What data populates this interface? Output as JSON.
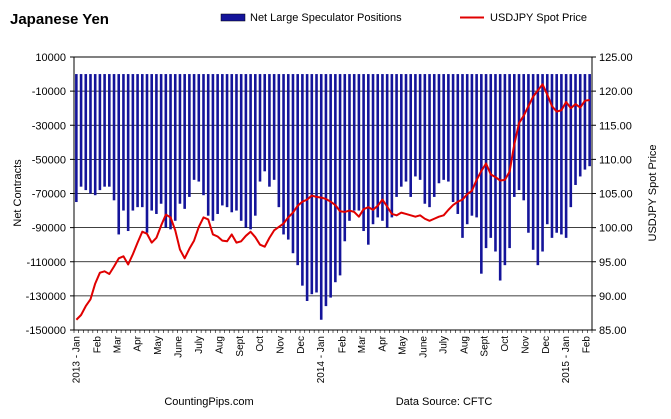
{
  "chart_data": {
    "type": "bar+line",
    "title": "Japanese Yen",
    "legend": {
      "placement": "top",
      "items": [
        {
          "label": "Net Large Speculator Positions",
          "kind": "bar",
          "color": "#14149a"
        },
        {
          "label": "USDJPY Spot Price",
          "kind": "line",
          "color": "#e00000"
        }
      ]
    },
    "y_left": {
      "label": "Net Contracts",
      "ylim": [
        -150000,
        10000
      ],
      "ticks": [
        10000,
        -10000,
        -30000,
        -50000,
        -70000,
        -90000,
        -110000,
        -130000,
        -150000
      ],
      "tick_labels": [
        "10000",
        "-10000",
        "-30000",
        "-50000",
        "-70000",
        "-90000",
        "-110000",
        "-130000",
        "-150000"
      ]
    },
    "y_right": {
      "label": "USDJPY Spot Price",
      "ylim": [
        85,
        125
      ],
      "ticks": [
        125,
        120,
        115,
        110,
        105,
        100,
        95,
        90,
        85
      ],
      "tick_labels": [
        "125.00",
        "120.00",
        "115.00",
        "110.00",
        "105.00",
        "100.00",
        "95.00",
        "90.00",
        "85.00"
      ]
    },
    "x_axis": {
      "n_weeks": 110,
      "month_labels": [
        {
          "label": "2013 - Jan",
          "week": 0
        },
        {
          "label": "Feb",
          "week": 4.5
        },
        {
          "label": "Mar",
          "week": 8.7
        },
        {
          "label": "Apr",
          "week": 13
        },
        {
          "label": "May",
          "week": 17.3
        },
        {
          "label": "June",
          "week": 21.7
        },
        {
          "label": "July",
          "week": 26
        },
        {
          "label": "Aug",
          "week": 30.4
        },
        {
          "label": "Sept",
          "week": 34.7
        },
        {
          "label": "Oct",
          "week": 39
        },
        {
          "label": "Nov",
          "week": 43.4
        },
        {
          "label": "Dec",
          "week": 47.7
        },
        {
          "label": "2014 - Jan",
          "week": 52
        },
        {
          "label": "Feb",
          "week": 56.5
        },
        {
          "label": "Mar",
          "week": 60.7
        },
        {
          "label": "Apr",
          "week": 65
        },
        {
          "label": "May",
          "week": 69.3
        },
        {
          "label": "June",
          "week": 73.7
        },
        {
          "label": "July",
          "week": 78
        },
        {
          "label": "Aug",
          "week": 82.4
        },
        {
          "label": "Sept",
          "week": 86.7
        },
        {
          "label": "Oct",
          "week": 91
        },
        {
          "label": "Nov",
          "week": 95.4
        },
        {
          "label": "Dec",
          "week": 99.7
        },
        {
          "label": "2015 - Jan",
          "week": 104
        },
        {
          "label": "Feb",
          "week": 108.3
        }
      ]
    },
    "series": [
      {
        "name": "Net Large Speculator Positions",
        "type": "bar",
        "values": [
          -75000,
          -66000,
          -68000,
          -70000,
          -71000,
          -68000,
          -66000,
          -66000,
          -74000,
          -94000,
          -80000,
          -92000,
          -80000,
          -78000,
          -78000,
          -93000,
          -80000,
          -82000,
          -76000,
          -90000,
          -91000,
          -86000,
          -76000,
          -79000,
          -72000,
          -62000,
          -63000,
          -71000,
          -83000,
          -86000,
          -82000,
          -77000,
          -78000,
          -81000,
          -80000,
          -86000,
          -90000,
          -91000,
          -83000,
          -63000,
          -57000,
          -66000,
          -62000,
          -78000,
          -94000,
          -97000,
          -105000,
          -112000,
          -124000,
          -133000,
          -129000,
          -128000,
          -144000,
          -136000,
          -131000,
          -122000,
          -118000,
          -98000,
          -86000,
          -80000,
          -80000,
          -92000,
          -100000,
          -88000,
          -84000,
          -86000,
          -90000,
          -84000,
          -72000,
          -66000,
          -63000,
          -72000,
          -60000,
          -62000,
          -76000,
          -78000,
          -72000,
          -64000,
          -62000,
          -63000,
          -75000,
          -82000,
          -96000,
          -88000,
          -83000,
          -84000,
          -117000,
          -102000,
          -96000,
          -104000,
          -121000,
          -112000,
          -102000,
          -72000,
          -68000,
          -74000,
          -93000,
          -103000,
          -112000,
          -104000,
          -88000,
          -96000,
          -93000,
          -94000,
          -96000,
          -78000,
          -65000,
          -60000,
          -56000,
          -54000
        ]
      },
      {
        "name": "USDJPY Spot Price",
        "type": "line",
        "values": [
          86.5,
          87.2,
          88.5,
          89.5,
          91.8,
          93.4,
          93.6,
          93.2,
          94.3,
          95.5,
          95.8,
          94.6,
          96.1,
          97.8,
          99.4,
          99.1,
          97.8,
          98.5,
          100.3,
          101.9,
          101.5,
          99.6,
          96.8,
          95.5,
          96.9,
          98.1,
          100.1,
          101.5,
          101.2,
          99.0,
          98.7,
          98.1,
          98.0,
          99.0,
          97.8,
          98.0,
          98.8,
          99.4,
          98.6,
          97.5,
          97.2,
          98.5,
          99.6,
          100.1,
          100.6,
          101.5,
          102.2,
          103.2,
          103.8,
          104.1,
          104.7,
          104.5,
          104.4,
          104.2,
          103.8,
          103.3,
          102.4,
          102.3,
          102.5,
          102.3,
          101.6,
          102.7,
          103.0,
          102.6,
          103.2,
          104.1,
          103.1,
          102.0,
          101.8,
          102.2,
          102.0,
          101.8,
          101.6,
          101.8,
          101.3,
          101.0,
          101.3,
          101.6,
          101.8,
          102.6,
          103.3,
          103.8,
          104.1,
          104.9,
          105.4,
          107.0,
          108.3,
          109.4,
          107.8,
          107.4,
          106.9,
          107.0,
          108.2,
          112.2,
          115.3,
          116.4,
          117.8,
          119.2,
          120.1,
          121.0,
          119.5,
          117.8,
          117.0,
          117.2,
          118.4,
          117.5,
          118.1,
          117.6,
          118.6,
          118.7
        ]
      }
    ],
    "footer": {
      "source_left": "CountingPips.com",
      "source_right": "Data Source:  CFTC"
    }
  }
}
